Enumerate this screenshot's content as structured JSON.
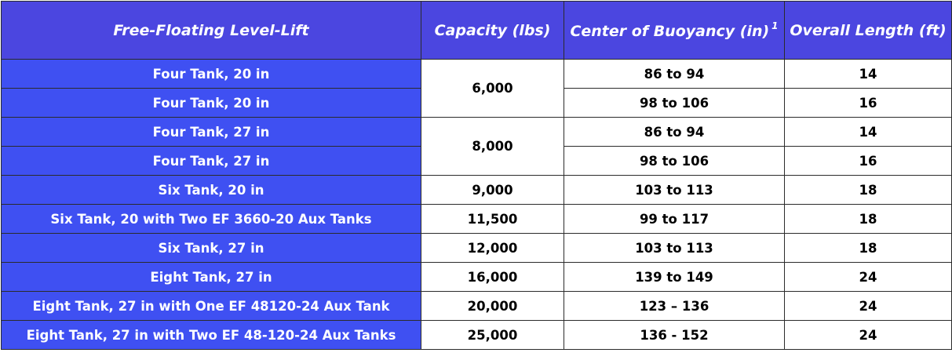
{
  "table": {
    "headers": {
      "model": "Free-Floating Level-Lift",
      "capacity": "Capacity (lbs)",
      "buoyancy": "Center of Buoyancy (in)",
      "buoyancy_note": "1",
      "length": "Overall Length (ft)"
    },
    "rows": [
      {
        "model": "Four Tank, 20 in",
        "capacity": "6,000",
        "buoyancy": "86 to 94",
        "length": "14"
      },
      {
        "model": "Four Tank, 20 in",
        "capacity": "6,000",
        "buoyancy": "98 to 106",
        "length": "16"
      },
      {
        "model": "Four Tank, 27 in",
        "capacity": "8,000",
        "buoyancy": "86 to 94",
        "length": "14"
      },
      {
        "model": "Four Tank, 27 in",
        "capacity": "8,000",
        "buoyancy": "98 to 106",
        "length": "16"
      },
      {
        "model": "Six Tank, 20 in",
        "capacity": "9,000",
        "buoyancy": "103 to 113",
        "length": "18"
      },
      {
        "model": "Six Tank, 20 with Two EF 3660-20 Aux Tanks",
        "capacity": "11,500",
        "buoyancy": "99 to 117",
        "length": "18"
      },
      {
        "model": "Six Tank, 27 in",
        "capacity": "12,000",
        "buoyancy": "103 to 113",
        "length": "18"
      },
      {
        "model": "Eight Tank, 27 in",
        "capacity": "16,000",
        "buoyancy": "139 to 149",
        "length": "24"
      },
      {
        "model": "Eight Tank, 27 in with One EF 48120-24 Aux Tank",
        "capacity": "20,000",
        "buoyancy": "123 – 136",
        "length": "24"
      },
      {
        "model": "Eight Tank, 27 in with Two EF 48-120-24 Aux Tanks",
        "capacity": "25,000",
        "buoyancy": "136 - 152",
        "length": "24"
      }
    ]
  },
  "colors": {
    "header_bg": "#4b46e0",
    "model_cell_bg": "#3f50f2",
    "value_cell_bg": "#ffffff",
    "border": "#2b2b2b"
  }
}
